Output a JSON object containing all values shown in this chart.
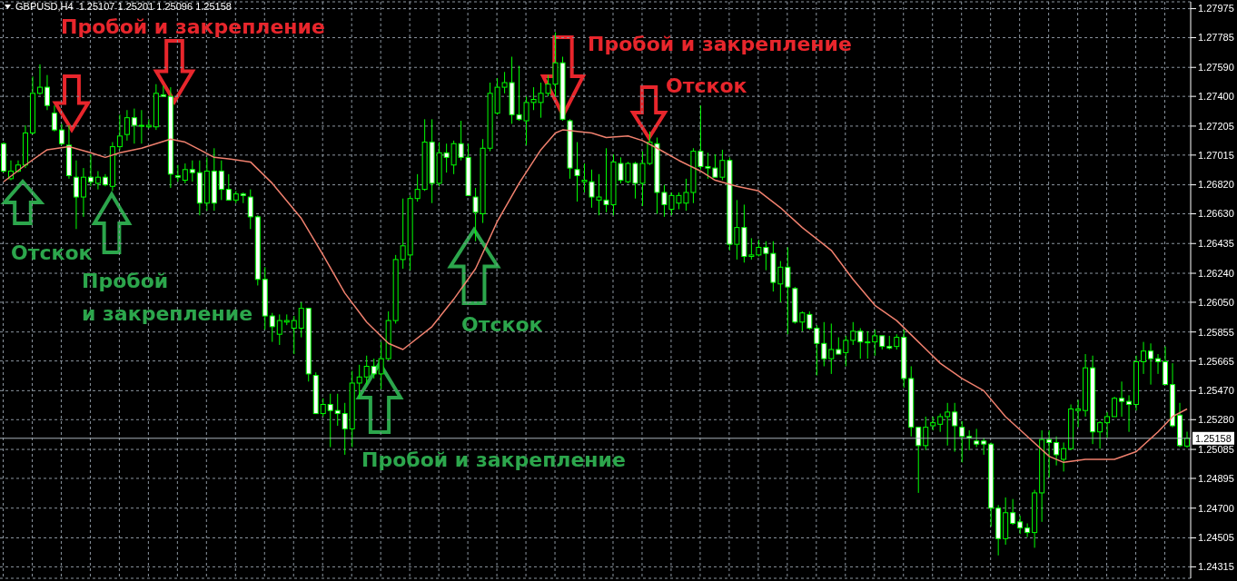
{
  "chart_data": {
    "type": "candlestick",
    "title": "GBPUSD,H4  1.25107 1.25201 1.25096 1.25158",
    "categories": [
      null,
      null,
      null,
      null,
      null,
      null,
      null,
      null,
      null,
      null,
      null,
      null,
      null,
      null,
      null,
      null,
      null,
      null,
      null,
      null,
      null,
      null,
      null,
      null,
      null,
      null,
      null,
      null,
      null,
      null,
      null,
      null,
      null,
      null,
      null,
      null,
      null,
      null,
      null,
      null,
      null,
      null,
      null,
      null,
      null,
      null,
      null,
      null,
      null,
      null,
      null,
      null,
      null,
      null,
      null,
      null,
      null,
      null,
      null,
      null,
      null,
      null,
      null,
      null,
      null,
      null,
      null,
      null,
      null,
      null,
      null,
      null,
      null,
      null,
      null,
      null,
      null,
      null,
      null,
      null,
      null,
      null,
      null,
      null,
      null,
      null,
      null,
      null,
      null,
      null,
      null,
      null,
      null,
      null,
      null,
      null,
      null,
      null,
      null,
      null,
      null,
      null,
      null,
      null,
      null,
      null,
      null,
      null,
      null,
      null,
      null,
      null,
      null,
      null,
      null,
      null,
      null,
      null,
      null,
      null,
      null,
      null,
      null,
      null,
      null,
      null,
      null,
      null,
      null,
      null,
      null,
      null,
      null,
      null,
      null,
      null,
      null,
      null,
      null,
      null,
      null,
      null,
      null,
      null,
      null,
      null,
      null,
      null,
      null,
      null,
      null,
      null,
      null,
      null,
      null,
      null,
      null,
      null,
      null,
      null,
      null,
      null,
      null,
      null
    ],
    "ohlc": [
      [
        1.2709,
        1.271,
        1.269,
        1.2691
      ],
      [
        1.2686,
        1.2698,
        1.2685,
        1.2691
      ],
      [
        1.2691,
        1.2698,
        1.269,
        1.2695
      ],
      [
        1.2695,
        1.2721,
        1.2693,
        1.2716
      ],
      [
        1.2716,
        1.2753,
        1.2715,
        1.2742
      ],
      [
        1.2742,
        1.2761,
        1.2741,
        1.2746
      ],
      [
        1.2746,
        1.2754,
        1.2731,
        1.2734
      ],
      [
        1.2729,
        1.2734,
        1.2717,
        1.2718
      ],
      [
        1.2718,
        1.2722,
        1.2708,
        1.2709
      ],
      [
        1.2708,
        1.2721,
        1.2686,
        1.2688
      ],
      [
        1.2687,
        1.2698,
        1.2653,
        1.2674
      ],
      [
        1.2674,
        1.2693,
        1.2661,
        1.2687
      ],
      [
        1.2687,
        1.2702,
        1.2681,
        1.2684
      ],
      [
        1.2683,
        1.2691,
        1.2679,
        1.2687
      ],
      [
        1.2687,
        1.2689,
        1.2681,
        1.2682
      ],
      [
        1.2681,
        1.271,
        1.2678,
        1.2707
      ],
      [
        1.2707,
        1.2728,
        1.2705,
        1.2714
      ],
      [
        1.2715,
        1.2731,
        1.2711,
        1.2726
      ],
      [
        1.2726,
        1.2732,
        1.2709,
        1.2721
      ],
      [
        1.2721,
        1.2731,
        1.2709,
        1.2721
      ],
      [
        1.272,
        1.2725,
        1.2719,
        1.2721
      ],
      [
        1.272,
        1.2748,
        1.2718,
        1.2742
      ],
      [
        1.2741,
        1.2747,
        1.274,
        1.274
      ],
      [
        1.274,
        1.2746,
        1.268,
        1.2689
      ],
      [
        1.2688,
        1.2695,
        1.2684,
        1.2687
      ],
      [
        1.2685,
        1.2696,
        1.2683,
        1.2692
      ],
      [
        1.2692,
        1.2698,
        1.2684,
        1.269
      ],
      [
        1.269,
        1.2698,
        1.2662,
        1.267
      ],
      [
        1.267,
        1.27,
        1.2665,
        1.2691
      ],
      [
        1.2691,
        1.2706,
        1.2665,
        1.267
      ],
      [
        1.2691,
        1.2698,
        1.2672,
        1.2679
      ],
      [
        1.2679,
        1.2689,
        1.2672,
        1.2672
      ],
      [
        1.2672,
        1.2678,
        1.267,
        1.2676
      ],
      [
        1.2676,
        1.2677,
        1.267,
        1.2675
      ],
      [
        1.2674,
        1.2679,
        1.2653,
        1.2661
      ],
      [
        1.2661,
        1.2662,
        1.2616,
        1.262
      ],
      [
        1.262,
        1.2628,
        1.2587,
        1.2596
      ],
      [
        1.2596,
        1.2598,
        1.2579,
        1.2589
      ],
      [
        1.2584,
        1.2597,
        1.2577,
        1.2593
      ],
      [
        1.2592,
        1.2597,
        1.259,
        1.2593
      ],
      [
        1.2588,
        1.2596,
        1.2571,
        1.2593
      ],
      [
        1.2588,
        1.2605,
        1.2582,
        1.2601
      ],
      [
        1.2601,
        1.2601,
        1.2553,
        1.2558
      ],
      [
        1.2557,
        1.2559,
        1.2532,
        1.2532
      ],
      [
        1.2532,
        1.2542,
        1.253,
        1.2538
      ],
      [
        1.2538,
        1.2545,
        1.251,
        1.2534
      ],
      [
        1.2534,
        1.2545,
        1.2524,
        1.2532
      ],
      [
        1.2532,
        1.2539,
        1.2505,
        1.2522
      ],
      [
        1.2522,
        1.256,
        1.251,
        1.2552
      ],
      [
        1.2552,
        1.2564,
        1.2542,
        1.2556
      ],
      [
        1.2556,
        1.257,
        1.2551,
        1.2563
      ],
      [
        1.2563,
        1.2568,
        1.2555,
        1.2558
      ],
      [
        1.2558,
        1.2579,
        1.2548,
        1.2568
      ],
      [
        1.2568,
        1.2599,
        1.2567,
        1.2593
      ],
      [
        1.2593,
        1.2636,
        1.2591,
        1.2633
      ],
      [
        1.2633,
        1.2673,
        1.2627,
        1.2642
      ],
      [
        1.2636,
        1.2675,
        1.2626,
        1.2673
      ],
      [
        1.2673,
        1.2689,
        1.2671,
        1.2679
      ],
      [
        1.2679,
        1.2725,
        1.2678,
        1.271
      ],
      [
        1.271,
        1.2725,
        1.267,
        1.2683
      ],
      [
        1.2683,
        1.271,
        1.2681,
        1.2703
      ],
      [
        1.2703,
        1.2709,
        1.269,
        1.27
      ],
      [
        1.2695,
        1.2711,
        1.2689,
        1.2709
      ],
      [
        1.2709,
        1.2724,
        1.2698,
        1.27
      ],
      [
        1.27,
        1.2709,
        1.2675,
        1.2675
      ],
      [
        1.2674,
        1.268,
        1.2645,
        1.2664
      ],
      [
        1.2663,
        1.2712,
        1.2657,
        1.2706
      ],
      [
        1.2706,
        1.2749,
        1.2704,
        1.2742
      ],
      [
        1.2729,
        1.2752,
        1.2728,
        1.2746
      ],
      [
        1.2746,
        1.2756,
        1.2742,
        1.2749
      ],
      [
        1.2749,
        1.2766,
        1.2722,
        1.2728
      ],
      [
        1.2728,
        1.276,
        1.2724,
        1.2725
      ],
      [
        1.2724,
        1.274,
        1.2708,
        1.2736
      ],
      [
        1.2736,
        1.2746,
        1.2731,
        1.2738
      ],
      [
        1.2736,
        1.2749,
        1.2726,
        1.2742
      ],
      [
        1.2742,
        1.2754,
        1.274,
        1.2748
      ],
      [
        1.2748,
        1.2782,
        1.274,
        1.2762
      ],
      [
        1.2762,
        1.2766,
        1.2724,
        1.2725
      ],
      [
        1.2724,
        1.2725,
        1.2686,
        1.2693
      ],
      [
        1.2692,
        1.271,
        1.2671,
        1.2688
      ],
      [
        1.2684,
        1.2696,
        1.2677,
        1.2685
      ],
      [
        1.2684,
        1.2692,
        1.2667,
        1.2674
      ],
      [
        1.2672,
        1.2689,
        1.2662,
        1.2674
      ],
      [
        1.2672,
        1.2706,
        1.2664,
        1.2669
      ],
      [
        1.2669,
        1.2702,
        1.2662,
        1.2697
      ],
      [
        1.2696,
        1.27,
        1.2683,
        1.2685
      ],
      [
        1.2684,
        1.2697,
        1.2683,
        1.2696
      ],
      [
        1.2696,
        1.2697,
        1.2673,
        1.2683
      ],
      [
        1.2683,
        1.2704,
        1.2668,
        1.2696
      ],
      [
        1.2696,
        1.2717,
        1.2695,
        1.271
      ],
      [
        1.2709,
        1.2713,
        1.2663,
        1.2677
      ],
      [
        1.2677,
        1.2682,
        1.2661,
        1.2669
      ],
      [
        1.2666,
        1.2677,
        1.2662,
        1.2675
      ],
      [
        1.267,
        1.2677,
        1.2666,
        1.2675
      ],
      [
        1.267,
        1.2686,
        1.2665,
        1.2677
      ],
      [
        1.2677,
        1.2706,
        1.267,
        1.2704
      ],
      [
        1.2704,
        1.2734,
        1.2692,
        1.2694
      ],
      [
        1.2694,
        1.2703,
        1.2686,
        1.2693
      ],
      [
        1.2693,
        1.2702,
        1.2687,
        1.2687
      ],
      [
        1.2687,
        1.2705,
        1.2685,
        1.2698
      ],
      [
        1.2698,
        1.27,
        1.2639,
        1.2643
      ],
      [
        1.2643,
        1.2672,
        1.2633,
        1.2654
      ],
      [
        1.2654,
        1.2669,
        1.2631,
        1.2635
      ],
      [
        1.2635,
        1.2647,
        1.2633,
        1.2636
      ],
      [
        1.2636,
        1.2646,
        1.2635,
        1.2641
      ],
      [
        1.2641,
        1.2645,
        1.2626,
        1.2637
      ],
      [
        1.2637,
        1.2645,
        1.2612,
        1.2618
      ],
      [
        1.2617,
        1.2632,
        1.2605,
        1.2628
      ],
      [
        1.2628,
        1.2641,
        1.2584,
        1.2615
      ],
      [
        1.2614,
        1.2615,
        1.2591,
        1.2592
      ],
      [
        1.2592,
        1.2599,
        1.2586,
        1.2598
      ],
      [
        1.2597,
        1.2599,
        1.2587,
        1.2588
      ],
      [
        1.2588,
        1.259,
        1.2557,
        1.2578
      ],
      [
        1.2578,
        1.2592,
        1.2563,
        1.2568
      ],
      [
        1.2568,
        1.2591,
        1.2558,
        1.2574
      ],
      [
        1.2574,
        1.2582,
        1.2571,
        1.2571
      ],
      [
        1.2572,
        1.2583,
        1.2563,
        1.258
      ],
      [
        1.258,
        1.2592,
        1.2577,
        1.2586
      ],
      [
        1.2586,
        1.2588,
        1.2568,
        1.2579
      ],
      [
        1.2579,
        1.2586,
        1.2568,
        1.2579
      ],
      [
        1.2579,
        1.2587,
        1.257,
        1.2583
      ],
      [
        1.2583,
        1.2583,
        1.2574,
        1.2576
      ],
      [
        1.2576,
        1.2583,
        1.2574,
        1.2575
      ],
      [
        1.2576,
        1.2584,
        1.2574,
        1.2582
      ],
      [
        1.2582,
        1.2587,
        1.2549,
        1.2555
      ],
      [
        1.2555,
        1.2563,
        1.2517,
        1.2523
      ],
      [
        1.2523,
        1.2523,
        1.248,
        1.2511
      ],
      [
        1.2511,
        1.253,
        1.2508,
        1.2523
      ],
      [
        1.2524,
        1.253,
        1.2521,
        1.2526
      ],
      [
        1.2525,
        1.2532,
        1.252,
        1.253
      ],
      [
        1.253,
        1.2539,
        1.2511,
        1.2533
      ],
      [
        1.2533,
        1.2539,
        1.2507,
        1.2524
      ],
      [
        1.2523,
        1.2527,
        1.25,
        1.2517
      ],
      [
        1.2517,
        1.2521,
        1.2508,
        1.2516
      ],
      [
        1.2514,
        1.2522,
        1.251,
        1.2512
      ],
      [
        1.2514,
        1.2516,
        1.2505,
        1.2512
      ],
      [
        1.2512,
        1.2513,
        1.2458,
        1.247
      ],
      [
        1.247,
        1.2472,
        1.2439,
        1.245
      ],
      [
        1.245,
        1.2477,
        1.2446,
        1.2467
      ],
      [
        1.2467,
        1.2476,
        1.2459,
        1.246
      ],
      [
        1.2461,
        1.2465,
        1.2453,
        1.2457
      ],
      [
        1.2457,
        1.246,
        1.2451,
        1.2454
      ],
      [
        1.2454,
        1.2482,
        1.2444,
        1.248
      ],
      [
        1.248,
        1.2521,
        1.2461,
        1.2515
      ],
      [
        1.2515,
        1.2521,
        1.249,
        1.2513
      ],
      [
        1.2513,
        1.2517,
        1.2498,
        1.2505
      ],
      [
        1.2502,
        1.2513,
        1.2494,
        1.2509
      ],
      [
        1.2509,
        1.2538,
        1.2508,
        1.2535
      ],
      [
        1.2534,
        1.2541,
        1.2523,
        1.2535
      ],
      [
        1.2534,
        1.2571,
        1.253,
        1.2562
      ],
      [
        1.2562,
        1.257,
        1.2512,
        1.252
      ],
      [
        1.252,
        1.2527,
        1.2509,
        1.2526
      ],
      [
        1.2526,
        1.2533,
        1.2516,
        1.253
      ],
      [
        1.253,
        1.2543,
        1.253,
        1.2542
      ],
      [
        1.2542,
        1.2553,
        1.253,
        1.254
      ],
      [
        1.254,
        1.2544,
        1.252,
        1.2538
      ],
      [
        1.2538,
        1.257,
        1.2534,
        1.2566
      ],
      [
        1.2566,
        1.2579,
        1.2558,
        1.2573
      ],
      [
        1.2573,
        1.2578,
        1.2551,
        1.2568
      ],
      [
        1.2568,
        1.2571,
        1.2558,
        1.2566
      ],
      [
        1.2566,
        1.2576,
        1.2551,
        1.2551
      ],
      [
        1.2551,
        1.2565,
        1.2523,
        1.2524
      ],
      [
        1.2531,
        1.2539,
        1.251,
        1.2511
      ],
      [
        1.25107,
        1.25201,
        1.25096,
        1.25158
      ]
    ],
    "color": "#00ff00",
    "series": [
      {
        "type": "line",
        "color": "#f0806e",
        "values": [
          1.2684,
          null,
          null,
          1.2695,
          null,
          null,
          1.2705,
          null,
          null,
          1.2707,
          null,
          null,
          1.2703,
          null,
          1.27,
          null,
          1.2703,
          null,
          null,
          1.2706,
          null,
          null,
          null,
          1.2712,
          null,
          1.271,
          null,
          1.2705,
          null,
          1.27,
          null,
          1.2699,
          null,
          null,
          1.2697,
          null,
          null,
          1.2683,
          null,
          null,
          null,
          1.266,
          null,
          null,
          1.2636,
          null,
          null,
          1.2611,
          null,
          null,
          1.2592,
          null,
          null,
          1.2578,
          null,
          1.2574,
          null,
          null,
          null,
          1.2589,
          null,
          null,
          1.2607,
          null,
          null,
          1.2627,
          null,
          null,
          1.2658,
          null,
          null,
          1.2683,
          null,
          null,
          1.2705,
          null,
          1.2716,
          1.2718,
          null,
          1.2717,
          null,
          1.2716,
          null,
          1.2713,
          null,
          null,
          1.2714,
          null,
          1.2711,
          null,
          1.2706,
          null,
          null,
          1.2698,
          null,
          null,
          1.2691,
          null,
          1.2685,
          null,
          null,
          1.2681,
          null,
          null,
          1.2678,
          null,
          null,
          1.2667,
          null,
          null,
          1.2654,
          null,
          null,
          null,
          1.2639,
          null,
          null,
          1.262,
          null,
          null,
          1.2603,
          null,
          null,
          1.2593,
          null,
          null,
          1.2579,
          null,
          null,
          1.2565,
          null,
          null,
          1.2555,
          null,
          null,
          1.2547,
          null,
          null,
          1.253,
          null,
          null,
          1.2517,
          null,
          null,
          1.2504,
          null,
          1.25,
          null,
          null,
          1.2502,
          null,
          null,
          null,
          1.2502,
          null,
          null,
          1.2507,
          null,
          null,
          1.252,
          null,
          1.253,
          null,
          1.2535
        ]
      }
    ],
    "ylim": [
      1.2424,
      1.2802
    ],
    "yticks": [
      {
        "value": 1.27975,
        "label": "1.27975"
      },
      {
        "value": 1.27785,
        "label": "1.27785"
      },
      {
        "value": 1.2759,
        "label": "1.27590"
      },
      {
        "value": 1.274,
        "label": "1.27400"
      },
      {
        "value": 1.27205,
        "label": "1.27205"
      },
      {
        "value": 1.27015,
        "label": "1.27015"
      },
      {
        "value": 1.2682,
        "label": "1.26820"
      },
      {
        "value": 1.2663,
        "label": "1.26630"
      },
      {
        "value": 1.26435,
        "label": "1.26435"
      },
      {
        "value": 1.2624,
        "label": "1.26240"
      },
      {
        "value": 1.2605,
        "label": "1.26050"
      },
      {
        "value": 1.25855,
        "label": "1.25855"
      },
      {
        "value": 1.25665,
        "label": "1.25665"
      },
      {
        "value": 1.2547,
        "label": "1.25470"
      },
      {
        "value": 1.2528,
        "label": "1.25280"
      },
      {
        "value": 1.25085,
        "label": "1.25085"
      },
      {
        "value": 1.24895,
        "label": "1.24895"
      },
      {
        "value": 1.247,
        "label": "1.24700"
      },
      {
        "value": 1.24505,
        "label": "1.24505"
      },
      {
        "value": 1.24315,
        "label": "1.24315"
      }
    ],
    "grid": true,
    "tick_labels": "y",
    "ref_lines": [
      {
        "axis": "y",
        "value": 1.25158,
        "label": "1.25158",
        "color": "#a8b0b8"
      }
    ],
    "annotations": [
      "Пробой и закрепление",
      "Пробой и закрепление",
      "Отскок",
      "Отскок",
      "Пробой",
      "и закрепление",
      "Отскок",
      "Пробой и закрепление"
    ]
  }
}
